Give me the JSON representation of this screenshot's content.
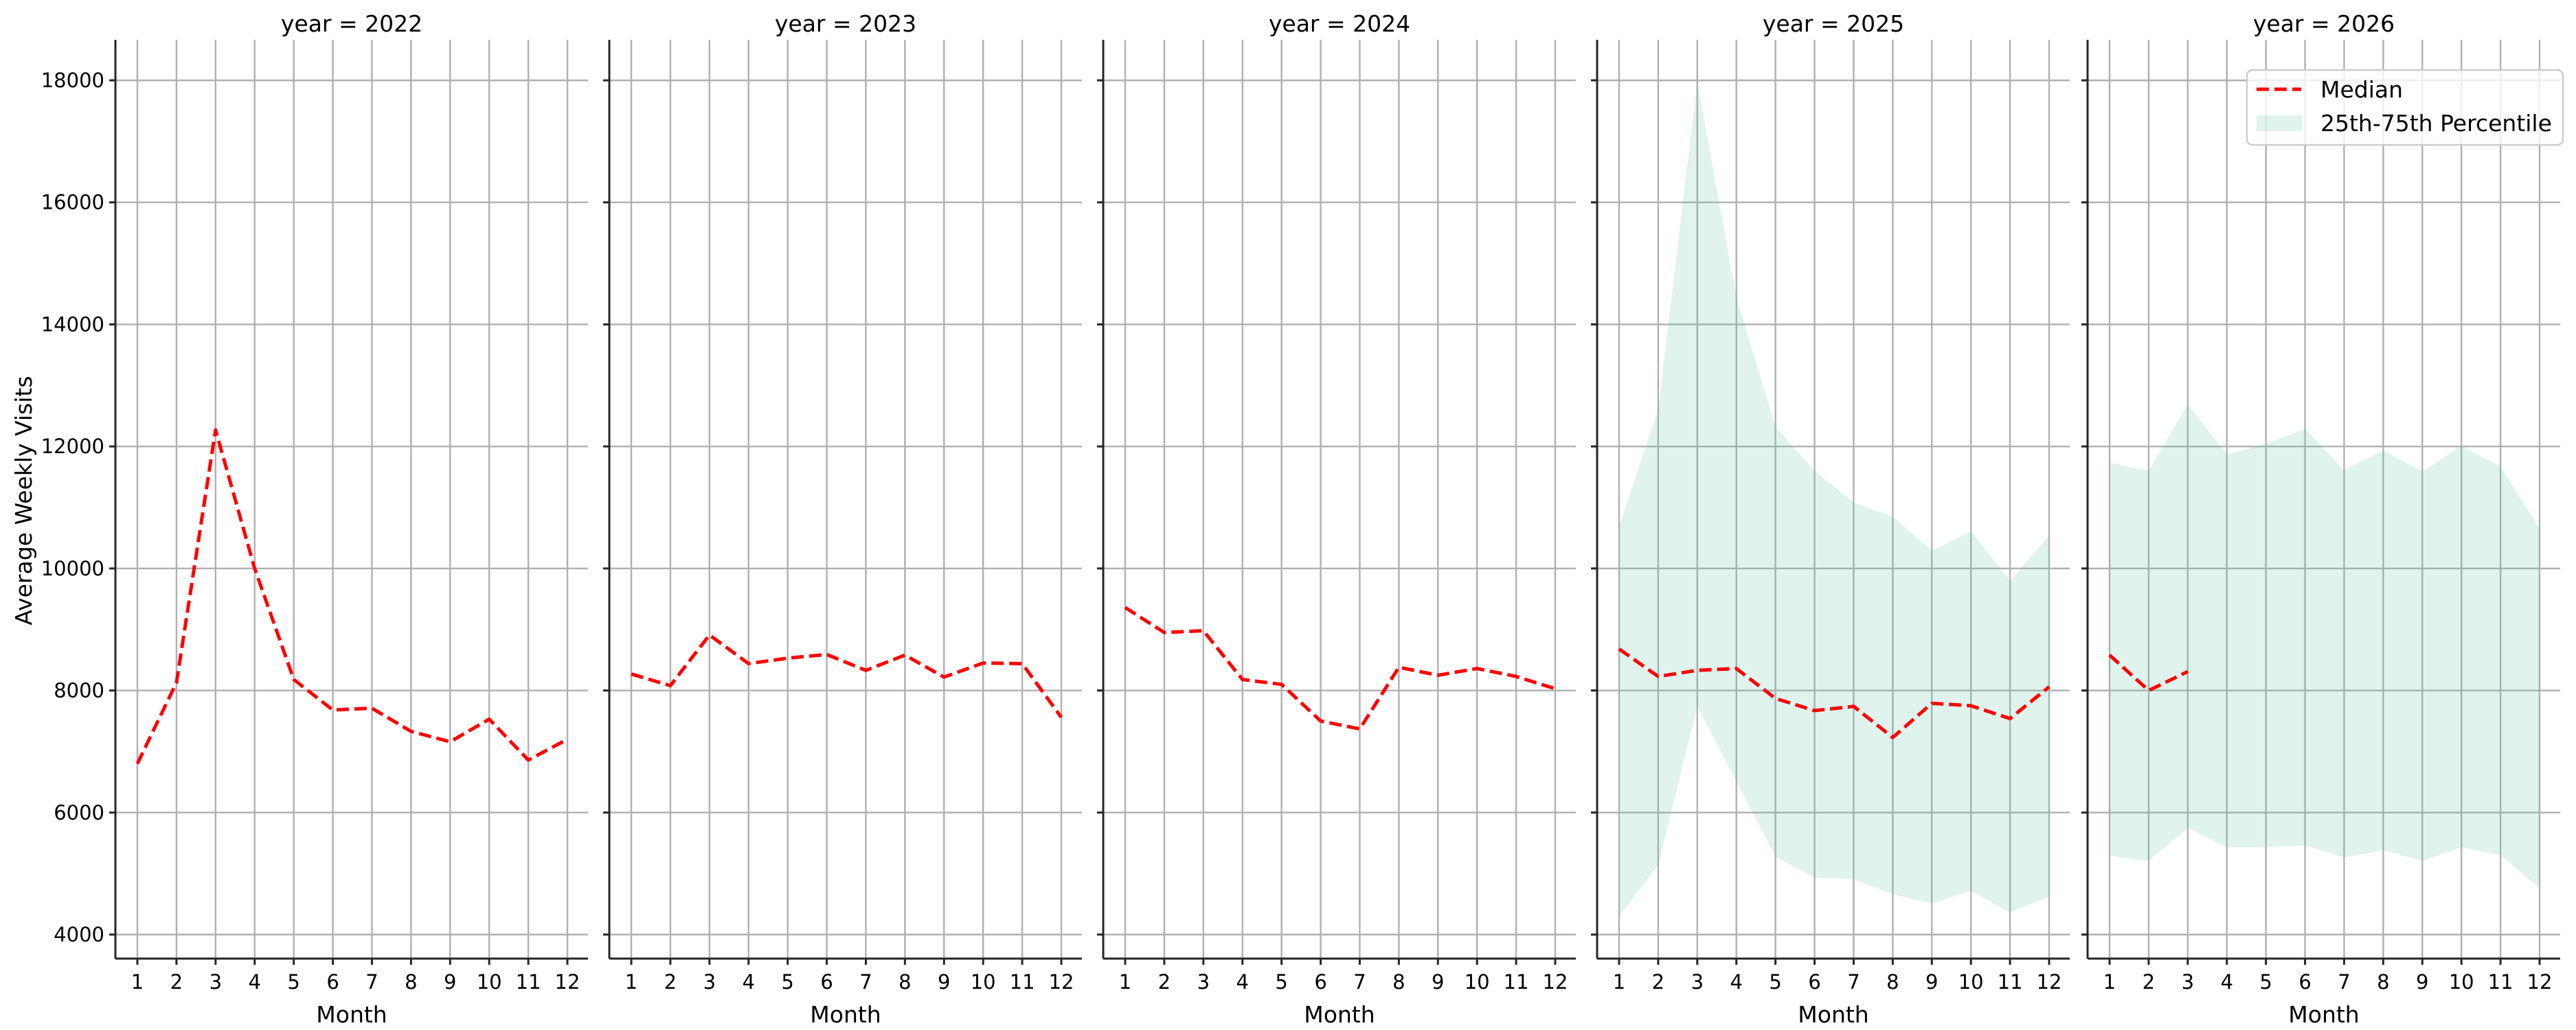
{
  "chart_data": {
    "type": "line",
    "layout": "facet-grid 1x5 (shared y-axis)",
    "facet_variable": "year",
    "xlabel": "Month",
    "ylabel": "Average Weekly Visits",
    "x": [
      1,
      2,
      3,
      4,
      5,
      6,
      7,
      8,
      9,
      10,
      11,
      12
    ],
    "x_tick_labels": [
      "1",
      "2",
      "3",
      "4",
      "5",
      "6",
      "7",
      "8",
      "9",
      "10",
      "11",
      "12"
    ],
    "y_ticks": [
      4000,
      6000,
      8000,
      10000,
      12000,
      14000,
      16000,
      18000
    ],
    "y_tick_labels": [
      "4000",
      "6000",
      "8000",
      "10000",
      "12000",
      "14000",
      "16000",
      "18000"
    ],
    "ylim": [
      3606,
      18664
    ],
    "grid": true,
    "legend": {
      "position": "upper right (in last panel)",
      "entries": [
        {
          "label": "Median",
          "style": "dashed-line",
          "color": "#ff0000"
        },
        {
          "label": "25th-75th Percentile",
          "style": "filled-band",
          "color": "#66c2a5",
          "alpha": 0.2
        }
      ]
    },
    "panels": [
      {
        "title": "year = 2022",
        "median": [
          6800,
          8130,
          12270,
          10000,
          8180,
          7680,
          7710,
          7330,
          7160,
          7530,
          6860,
          7200
        ],
        "p25": null,
        "p75": null
      },
      {
        "title": "year = 2023",
        "median": [
          8270,
          8080,
          8910,
          8440,
          8530,
          8590,
          8330,
          8580,
          8220,
          8450,
          8440,
          7560
        ],
        "p25": null,
        "p75": null
      },
      {
        "title": "year = 2024",
        "median": [
          9360,
          8950,
          8980,
          8180,
          8100,
          7500,
          7370,
          8380,
          8250,
          8360,
          8230,
          8030
        ],
        "p25": null,
        "p75": null
      },
      {
        "title": "year = 2025",
        "median": [
          8680,
          8230,
          8330,
          8360,
          7870,
          7670,
          7740,
          7230,
          7790,
          7750,
          7540,
          8060
        ],
        "p25": [
          4300,
          5140,
          7740,
          6510,
          5280,
          4930,
          4910,
          4660,
          4510,
          4720,
          4360,
          4620
        ],
        "p75": [
          10690,
          12600,
          17970,
          14440,
          12320,
          11600,
          11080,
          10850,
          10290,
          10610,
          9800,
          10530
        ]
      },
      {
        "title": "year = 2026",
        "median": [
          8580,
          8000,
          8310,
          null,
          null,
          null,
          null,
          null,
          null,
          null,
          null,
          null
        ],
        "p25": [
          5290,
          5210,
          5750,
          5430,
          5430,
          5460,
          5260,
          5380,
          5210,
          5430,
          5300,
          4760
        ],
        "p75": [
          11730,
          11600,
          12690,
          11870,
          12040,
          12290,
          11610,
          11930,
          11590,
          12010,
          11670,
          10650
        ]
      }
    ],
    "colors": {
      "median": "#ff0000",
      "band": "#66c2a5",
      "grid": "#b0b0b0"
    }
  }
}
